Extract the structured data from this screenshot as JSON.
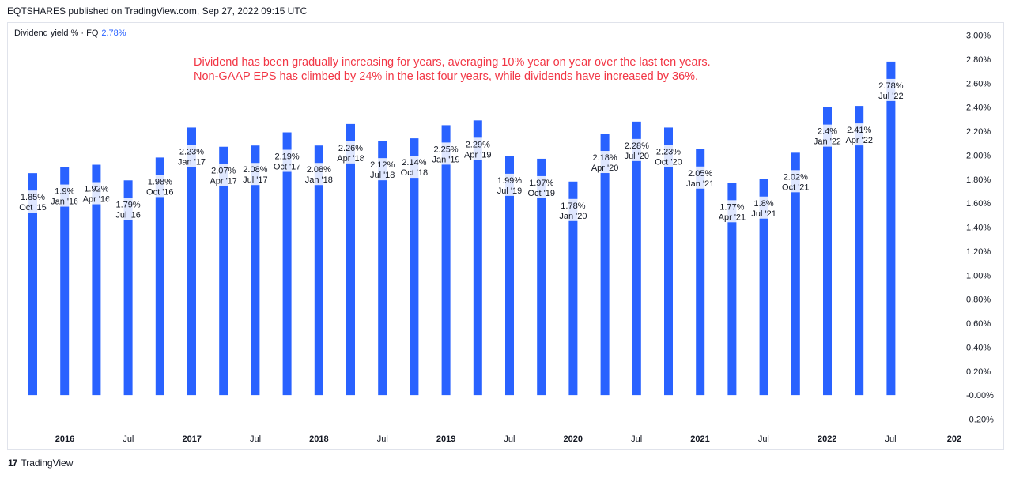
{
  "header": {
    "published": "EQTSHARES published on TradingView.com, Sep 27, 2022 09:15 UTC"
  },
  "legend": {
    "label": "Dividend yield % · FQ",
    "value": "2.78%"
  },
  "annotation": {
    "line1": "Dividend has been gradually increasing for years, averaging 10% year on year over the last ten years.",
    "line2": "Non-GAAP EPS has climbed by 24% in the last four years, while dividends have increased by 36%."
  },
  "footer": {
    "brand": "TradingView",
    "logo_icon": "tradingview-logo-icon"
  },
  "colors": {
    "bar": "#2962ff",
    "annotation": "#f23645"
  },
  "chart_data": {
    "type": "bar",
    "series": [
      {
        "name": "Dividend yield % · FQ",
        "values": [
          1.85,
          1.9,
          1.92,
          1.79,
          1.98,
          2.23,
          2.07,
          2.08,
          2.19,
          2.08,
          2.26,
          2.12,
          2.14,
          2.25,
          2.29,
          1.99,
          1.97,
          1.78,
          2.18,
          2.28,
          2.23,
          2.05,
          1.77,
          1.8,
          2.02,
          2.4,
          2.41,
          2.78
        ]
      }
    ],
    "categories": [
      "Oct '15",
      "Jan '16",
      "Apr '16",
      "Jul '16",
      "Oct '16",
      "Jan '17",
      "Apr '17",
      "Jul '17",
      "Oct '17",
      "Jan '18",
      "Apr '18",
      "Jul '18",
      "Oct '18",
      "Jan '19",
      "Apr '19",
      "Jul '19",
      "Oct '19",
      "Jan '20",
      "Apr '20",
      "Jul '20",
      "Oct '20",
      "Jan '21",
      "Apr '21",
      "Jul '21",
      "Oct '21",
      "Jan '22",
      "Apr '22",
      "Jul '22"
    ],
    "data_labels": [
      "1.85%",
      "1.9%",
      "1.92%",
      "1.79%",
      "1.98%",
      "2.23%",
      "2.07%",
      "2.08%",
      "2.19%",
      "2.08%",
      "2.26%",
      "2.12%",
      "2.14%",
      "2.25%",
      "2.29%",
      "1.99%",
      "1.97%",
      "1.78%",
      "2.18%",
      "2.28%",
      "2.23%",
      "2.05%",
      "1.77%",
      "1.8%",
      "2.02%",
      "2.4%",
      "2.41%",
      "2.78%"
    ],
    "ylim": [
      -0.2,
      3.0
    ],
    "yticks": [
      "3.00%",
      "2.80%",
      "2.60%",
      "2.40%",
      "2.20%",
      "2.00%",
      "1.80%",
      "1.60%",
      "1.40%",
      "1.20%",
      "1.00%",
      "0.80%",
      "0.60%",
      "0.40%",
      "0.20%",
      "-0.00%",
      "-0.20%"
    ],
    "xticks": [
      {
        "label": "2016",
        "bold": true
      },
      {
        "label": "Jul",
        "bold": false
      },
      {
        "label": "2017",
        "bold": true
      },
      {
        "label": "Jul",
        "bold": false
      },
      {
        "label": "2018",
        "bold": true
      },
      {
        "label": "Jul",
        "bold": false
      },
      {
        "label": "2019",
        "bold": true
      },
      {
        "label": "Jul",
        "bold": false
      },
      {
        "label": "2020",
        "bold": true
      },
      {
        "label": "Jul",
        "bold": false
      },
      {
        "label": "2021",
        "bold": true
      },
      {
        "label": "Jul",
        "bold": false
      },
      {
        "label": "2022",
        "bold": true
      },
      {
        "label": "Jul",
        "bold": false
      },
      {
        "label": "202",
        "bold": true
      }
    ],
    "legend_position": "top-left",
    "grid": false
  }
}
